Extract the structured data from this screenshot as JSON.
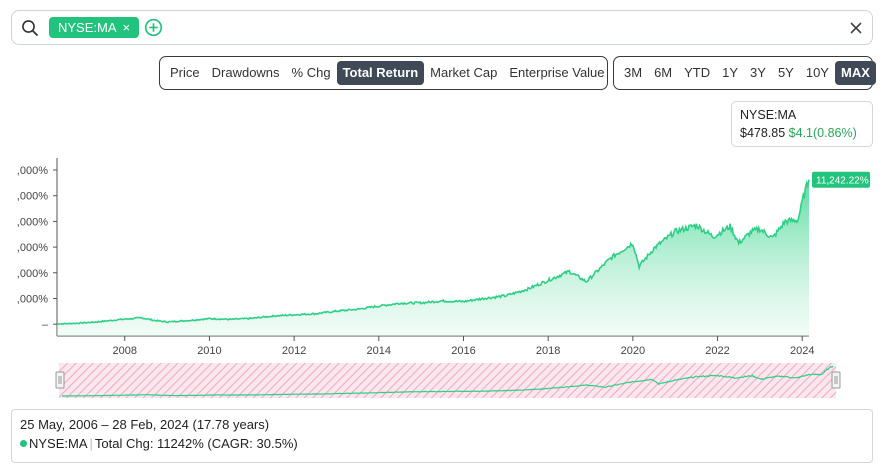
{
  "search": {
    "chip_label": "NYSE:MA",
    "chip_remove": "×",
    "icons": {
      "search": "search-icon",
      "add": "plus-circle-icon",
      "close": "close-icon"
    }
  },
  "metric_tabs": [
    "Price",
    "Drawdowns",
    "% Chg",
    "Total Return",
    "Market Cap",
    "Enterprise Value"
  ],
  "metric_active": "Total Return",
  "range_tabs": [
    "3M",
    "6M",
    "YTD",
    "1Y",
    "3Y",
    "5Y",
    "10Y",
    "MAX"
  ],
  "range_active": "MAX",
  "tooltip": {
    "ticker": "NYSE:MA",
    "price": "$478.85",
    "change": "$4.1(0.86%)"
  },
  "colors": {
    "accent": "#22c47d",
    "line": "#2ecf87",
    "active_tab": "#3f4a56",
    "range_hatch": "#f2a7bf"
  },
  "chart_data": {
    "type": "area",
    "series": [
      {
        "name": "NYSE:MA"
      }
    ],
    "y_tick_labels": [
      ",000%",
      ",000%",
      ",000%",
      ",000%",
      ",000%",
      ",000%",
      "–"
    ],
    "x_tick_labels": [
      "2008",
      "2010",
      "2012",
      "2014",
      "2016",
      "2018",
      "2020",
      "2022",
      "2024"
    ],
    "x_ticks": [
      2008,
      2010,
      2012,
      2014,
      2016,
      2018,
      2020,
      2022,
      2024
    ],
    "xlim": [
      2006.4,
      2024.16
    ],
    "ylim": [
      0,
      12000
    ],
    "last_value_label": "11,242.22%",
    "points": [
      [
        2006.4,
        0
      ],
      [
        2006.8,
        50
      ],
      [
        2007.3,
        150
      ],
      [
        2007.9,
        350
      ],
      [
        2008.4,
        480
      ],
      [
        2008.7,
        280
      ],
      [
        2009.0,
        160
      ],
      [
        2009.5,
        270
      ],
      [
        2010.0,
        420
      ],
      [
        2010.5,
        360
      ],
      [
        2011.0,
        440
      ],
      [
        2011.5,
        620
      ],
      [
        2012.0,
        720
      ],
      [
        2012.5,
        800
      ],
      [
        2013.0,
        1000
      ],
      [
        2013.5,
        1150
      ],
      [
        2014.0,
        1400
      ],
      [
        2014.5,
        1620
      ],
      [
        2015.0,
        1650
      ],
      [
        2015.5,
        1800
      ],
      [
        2016.0,
        1750
      ],
      [
        2016.5,
        2000
      ],
      [
        2017.0,
        2200
      ],
      [
        2017.5,
        2700
      ],
      [
        2018.0,
        3400
      ],
      [
        2018.5,
        4100
      ],
      [
        2018.9,
        3300
      ],
      [
        2019.5,
        5200
      ],
      [
        2020.0,
        6300
      ],
      [
        2020.15,
        4500
      ],
      [
        2020.5,
        5900
      ],
      [
        2021.0,
        7200
      ],
      [
        2021.5,
        7700
      ],
      [
        2021.9,
        6800
      ],
      [
        2022.3,
        7600
      ],
      [
        2022.5,
        6300
      ],
      [
        2022.8,
        7200
      ],
      [
        2023.0,
        7400
      ],
      [
        2023.3,
        6700
      ],
      [
        2023.6,
        8000
      ],
      [
        2023.9,
        8100
      ],
      [
        2024.05,
        10200
      ],
      [
        2024.16,
        11242
      ]
    ]
  },
  "footer": {
    "date_range": "25 May, 2006 – 28 Feb, 2024 (17.78 years)",
    "ticker": "NYSE:MA",
    "summary": "Total Chg: 11242% (CAGR: 30.5%)"
  }
}
